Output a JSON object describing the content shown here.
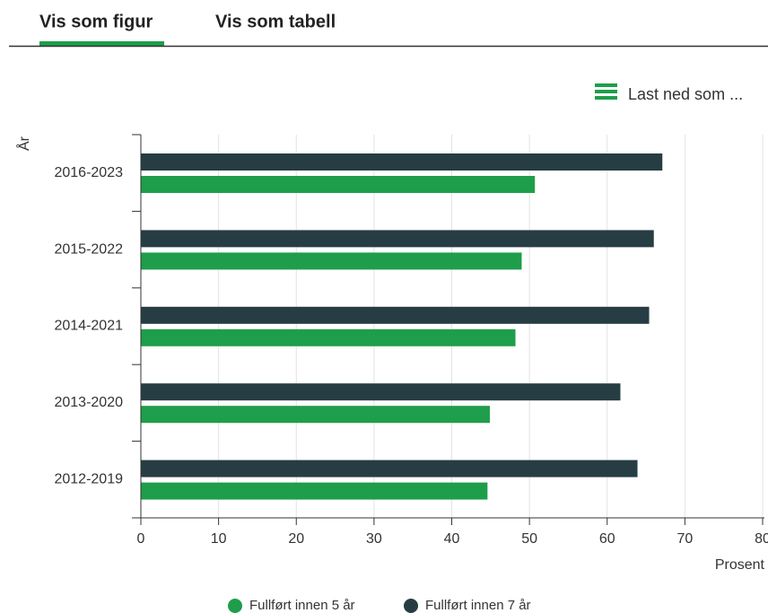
{
  "tabs": [
    "Vis som figur",
    "Vis som tabell"
  ],
  "download": "Last ned som ...",
  "chart_data": {
    "type": "hbar",
    "ylabel": "År",
    "xlabel": "Prosent",
    "categories": [
      "2016-2023",
      "2015-2022",
      "2014-2021",
      "2013-2020",
      "2012-2019"
    ],
    "series": [
      {
        "name": "Fullført innen 5 år",
        "color": "#1e9e4a",
        "values": [
          50.7,
          49.0,
          48.2,
          44.9,
          44.6
        ]
      },
      {
        "name": "Fullført innen 7 år",
        "color": "#263d43",
        "values": [
          67.1,
          66.0,
          65.4,
          61.7,
          63.9
        ]
      }
    ],
    "xlim": [
      0,
      80
    ],
    "xticks": [
      0,
      10,
      20,
      30,
      40,
      50,
      60,
      70,
      80
    ],
    "grid": true,
    "legend": "bottom"
  }
}
